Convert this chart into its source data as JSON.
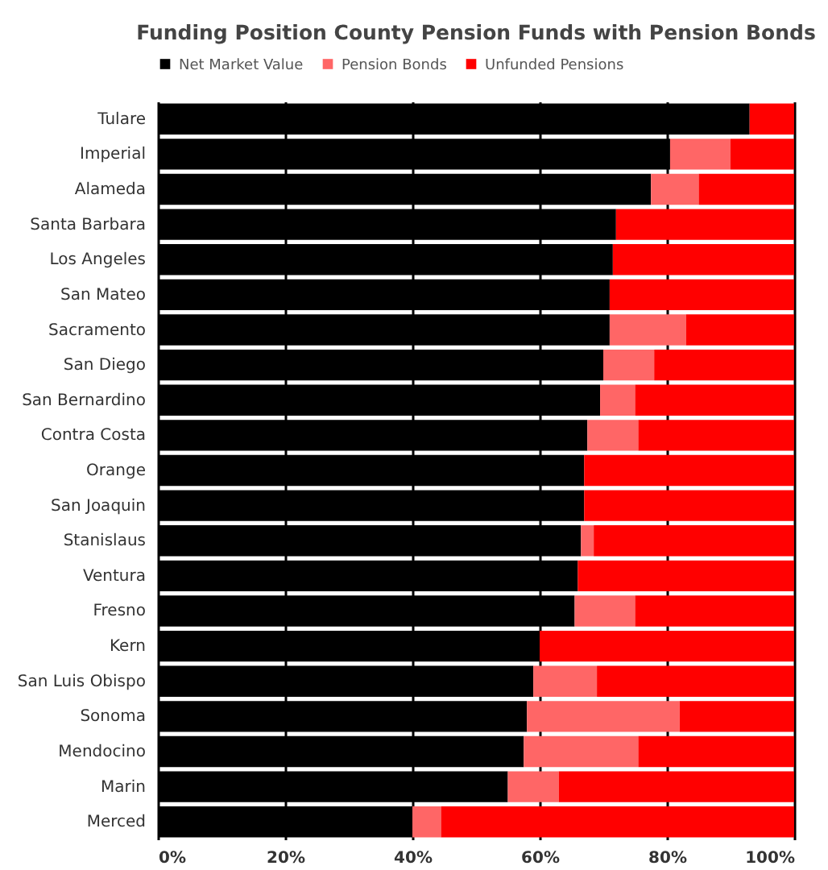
{
  "chart_data": {
    "type": "bar",
    "orientation": "horizontal",
    "stacked": true,
    "title": "Funding Position County Pension Funds with Pension Bonds",
    "categories": [
      "Tulare",
      "Imperial",
      "Alameda",
      "Santa Barbara",
      "Los Angeles",
      "San Mateo",
      "Sacramento",
      "San Diego",
      "San Bernardino",
      "Contra Costa",
      "Orange",
      "San Joaquin",
      "Stanislaus",
      "Ventura",
      "Fresno",
      "Kern",
      "San Luis Obispo",
      "Sonoma",
      "Mendocino",
      "Marin",
      "Merced"
    ],
    "series": [
      {
        "name": "Net Market Value",
        "color": "#000000",
        "values": [
          93,
          80.5,
          77.5,
          72,
          71.5,
          71,
          71,
          70,
          69.5,
          67.5,
          67,
          67,
          66.5,
          66,
          65.5,
          60,
          59,
          58,
          57.5,
          55,
          40
        ]
      },
      {
        "name": "Pension Bonds",
        "color": "#ff6666",
        "values": [
          0,
          9.5,
          7.5,
          0,
          0,
          0,
          12,
          8,
          5.5,
          8,
          0,
          0,
          2,
          0,
          9.5,
          0,
          10,
          24,
          18,
          8,
          4.5
        ]
      },
      {
        "name": "Unfunded Pensions",
        "color": "#ff0000",
        "values": [
          7,
          10,
          15,
          28,
          28.5,
          29,
          17,
          22,
          25,
          24.5,
          33,
          33,
          31.5,
          34,
          25,
          40,
          31,
          18,
          24.5,
          37,
          55.5
        ]
      }
    ],
    "xlim": [
      0,
      100
    ],
    "xticks": [
      {
        "value": 0,
        "label": "0%"
      },
      {
        "value": 20,
        "label": "20%"
      },
      {
        "value": 40,
        "label": "40%"
      },
      {
        "value": 60,
        "label": "60%"
      },
      {
        "value": 80,
        "label": "80%"
      },
      {
        "value": 100,
        "label": "100%"
      }
    ],
    "grid": "x",
    "legend": "top"
  }
}
